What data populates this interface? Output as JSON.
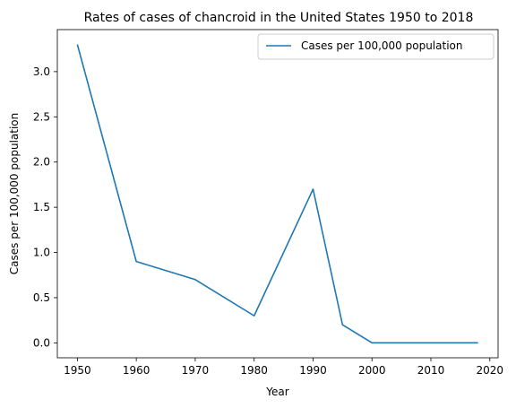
{
  "chart_data": {
    "type": "line",
    "title": "Rates of cases of chancroid in the United States 1950 to 2018",
    "xlabel": "Year",
    "ylabel": "Cases per 100,000 population",
    "xlim": [
      1946.6,
      2021.4
    ],
    "ylim": [
      -0.165,
      3.465
    ],
    "xticks": [
      1950,
      1960,
      1970,
      1980,
      1990,
      2000,
      2010,
      2020
    ],
    "yticks": [
      0.0,
      0.5,
      1.0,
      1.5,
      2.0,
      2.5,
      3.0
    ],
    "ytick_labels": [
      "0.0",
      "0.5",
      "1.0",
      "1.5",
      "2.0",
      "2.5",
      "3.0"
    ],
    "grid": false,
    "legend_position": "top-right",
    "series": [
      {
        "name": "Cases per 100,000 population",
        "color": "#1f77b4",
        "x": [
          1950,
          1960,
          1970,
          1980,
          1990,
          1995,
          2000,
          2010,
          2018
        ],
        "values": [
          3.3,
          0.9,
          0.7,
          0.3,
          1.7,
          0.2,
          0.0,
          0.0,
          0.0
        ]
      }
    ]
  }
}
